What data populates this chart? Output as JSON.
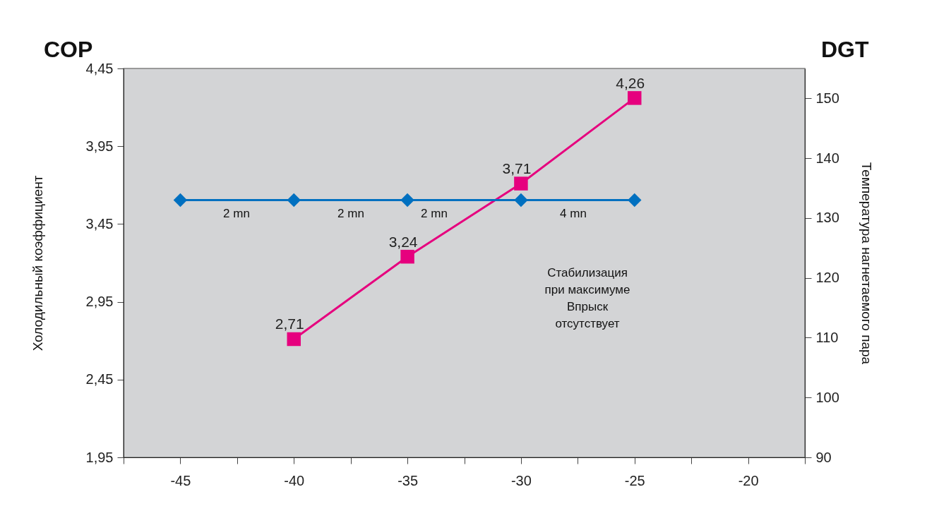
{
  "chart_data": {
    "type": "line",
    "ylabel": "Холодильный коэффициент",
    "y2label": "Температура нагнетаемого пара",
    "x": [
      -45,
      -40,
      -35,
      -30,
      -25
    ],
    "xlim": [
      -47.5,
      -17.5
    ],
    "xticks": [
      {
        "value": -47.5,
        "label": null
      },
      -45,
      {
        "value": -42.5,
        "label": null
      },
      -40,
      {
        "value": -37.5,
        "label": null
      },
      -35,
      {
        "value": -32.5,
        "label": null
      },
      -30,
      {
        "value": -27.5,
        "label": null
      },
      -25,
      {
        "value": -22.5,
        "label": null
      },
      -20,
      {
        "value": -17.5,
        "label": null
      }
    ],
    "ylim": [
      1.95,
      4.45
    ],
    "yticks": [
      {
        "value": 1.95,
        "label": "1,95"
      },
      {
        "value": 2.45,
        "label": "2,45"
      },
      {
        "value": 2.95,
        "label": "2,95"
      },
      {
        "value": 3.45,
        "label": "3,45"
      },
      {
        "value": 3.95,
        "label": "3,95"
      },
      {
        "value": 4.45,
        "label": "4,45"
      }
    ],
    "y2lim": [
      90,
      155
    ],
    "y2ticks": [
      90,
      100,
      110,
      120,
      130,
      140,
      150
    ],
    "series": [
      {
        "color": "#e6007e",
        "marker": "square",
        "x": [
          -40,
          -35,
          -30,
          -25
        ],
        "values": [
          2.71,
          3.24,
          3.71,
          4.26
        ],
        "value_labels": [
          "2,71",
          "3,24",
          "3,71",
          "4,26"
        ]
      },
      {
        "color": "#0070c0",
        "marker": "diamond",
        "axis": "y2",
        "values": [
          133,
          133,
          133,
          133,
          133
        ]
      }
    ],
    "annotations": [
      "COP",
      "DGT",
      "2 mn",
      "2 mn",
      "2 mn",
      "4 mn",
      "Стабилизация\nпри максимуме\nВпрыск\nотсутствует"
    ]
  }
}
